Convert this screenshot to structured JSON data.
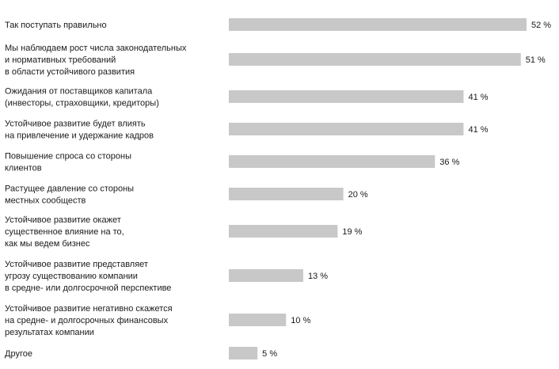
{
  "chart_data": {
    "type": "bar",
    "orientation": "horizontal",
    "title": "",
    "xlabel": "",
    "ylabel": "",
    "xlim": [
      0,
      52
    ],
    "grid": false,
    "legend": "none",
    "value_suffix": " %",
    "bar_color": "#c8c8c8",
    "categories": [
      [
        "Так поступать правильно"
      ],
      [
        "Мы наблюдаем рост числа законодательных",
        "и нормативных требований",
        "в области устойчивого развития"
      ],
      [
        "Ожидания от поставщиков капитала",
        "(инвесторы, страховщики, кредиторы)"
      ],
      [
        "Устойчивое развитие будет влиять",
        "на привлечение и удержание кадров"
      ],
      [
        "Повышение спроса со стороны",
        "клиентов"
      ],
      [
        "Растущее давление со стороны",
        "местных сообществ"
      ],
      [
        "Устойчивое развитие окажет",
        "существенное влияние на то,",
        "как мы ведем бизнес"
      ],
      [
        "Устойчивое развитие представляет",
        "угрозу существованию компании",
        "в средне- или долгосрочной перспективе"
      ],
      [
        "Устойчивое развитие негативно скажется",
        "на средне- и долгосрочных финансовых",
        "результатах компании"
      ],
      [
        "Другое"
      ]
    ],
    "values": [
      52,
      51,
      41,
      41,
      36,
      20,
      19,
      13,
      10,
      5
    ]
  }
}
